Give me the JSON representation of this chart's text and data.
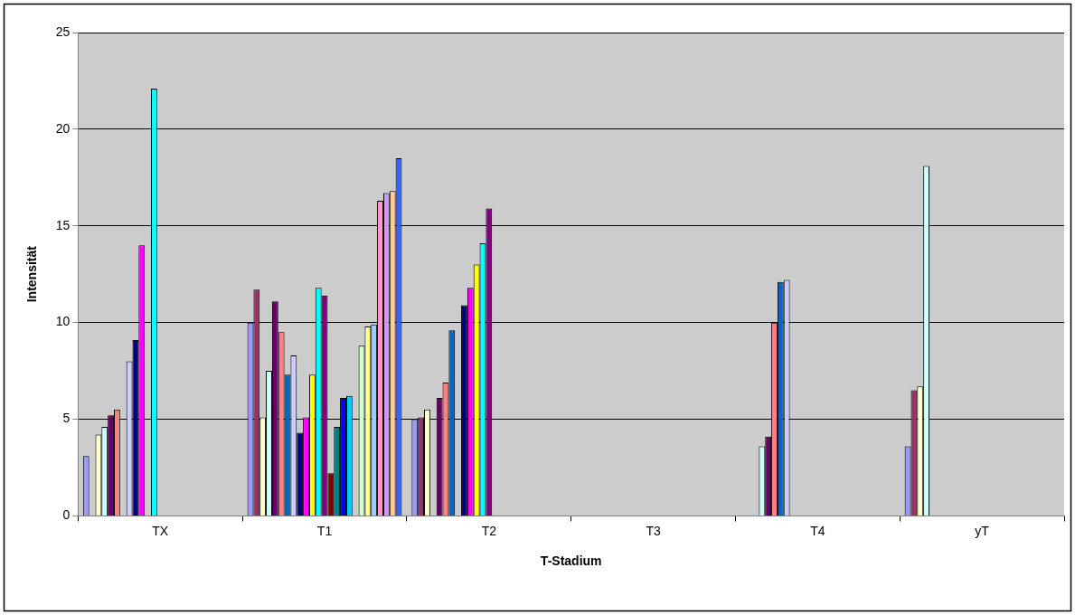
{
  "chart_data": {
    "type": "bar",
    "xlabel": "T-Stadium",
    "ylabel": "Intensität",
    "categories": [
      "TX",
      "T1",
      "T2",
      "T3",
      "T4",
      "yT"
    ],
    "ylim": [
      0,
      25
    ],
    "yticks": [
      0,
      5,
      10,
      15,
      20,
      25
    ],
    "grid": "y",
    "series": [
      {
        "color": "#9999ff",
        "values": [
          3.1,
          10.0,
          5.0,
          null,
          null,
          3.6
        ]
      },
      {
        "color": "#993366",
        "values": [
          null,
          11.7,
          5.1,
          null,
          null,
          6.5
        ]
      },
      {
        "color": "#ffffcc",
        "values": [
          4.2,
          5.1,
          5.5,
          null,
          null,
          6.7
        ]
      },
      {
        "color": "#ccffff",
        "values": [
          4.6,
          7.5,
          null,
          null,
          3.6,
          18.1
        ]
      },
      {
        "color": "#660066",
        "values": [
          5.2,
          11.1,
          6.1,
          null,
          4.1,
          null
        ]
      },
      {
        "color": "#ff8080",
        "values": [
          5.5,
          9.5,
          6.9,
          null,
          10.0,
          null
        ]
      },
      {
        "color": "#0066cc",
        "values": [
          null,
          7.3,
          9.6,
          null,
          12.1,
          null
        ]
      },
      {
        "color": "#ccccff",
        "values": [
          8.0,
          8.3,
          null,
          null,
          12.2,
          null
        ]
      },
      {
        "color": "#000080",
        "values": [
          9.1,
          4.3,
          10.9,
          null,
          null,
          null
        ]
      },
      {
        "color": "#ff00ff",
        "values": [
          14.0,
          5.1,
          11.8,
          null,
          null,
          null
        ]
      },
      {
        "color": "#ffff00",
        "values": [
          null,
          7.3,
          13.0,
          null,
          null,
          null
        ]
      },
      {
        "color": "#00ffff",
        "values": [
          22.1,
          11.8,
          14.1,
          null,
          null,
          null
        ]
      },
      {
        "color": "#800080",
        "values": [
          null,
          11.4,
          15.9,
          null,
          null,
          null
        ]
      },
      {
        "color": "#800000",
        "values": [
          null,
          2.2,
          null,
          null,
          null,
          null
        ]
      },
      {
        "color": "#008080",
        "values": [
          null,
          4.6,
          null,
          null,
          null,
          null
        ]
      },
      {
        "color": "#0000ff",
        "values": [
          null,
          6.1,
          null,
          null,
          null,
          null
        ]
      },
      {
        "color": "#00ccff",
        "values": [
          null,
          6.2,
          null,
          null,
          null,
          null
        ]
      },
      {
        "color": "#ccffff",
        "values": [
          null,
          null,
          null,
          null,
          null,
          null
        ]
      },
      {
        "color": "#ccffcc",
        "values": [
          null,
          8.8,
          null,
          null,
          null,
          null
        ]
      },
      {
        "color": "#ffff99",
        "values": [
          null,
          9.8,
          null,
          null,
          null,
          null
        ]
      },
      {
        "color": "#99ccff",
        "values": [
          null,
          9.9,
          null,
          null,
          null,
          null
        ]
      },
      {
        "color": "#ff99cc",
        "values": [
          null,
          16.3,
          null,
          null,
          null,
          null
        ]
      },
      {
        "color": "#cc99ff",
        "values": [
          null,
          16.7,
          null,
          null,
          null,
          null
        ]
      },
      {
        "color": "#ffcc99",
        "values": [
          null,
          16.8,
          null,
          null,
          null,
          null
        ]
      },
      {
        "color": "#3366ff",
        "values": [
          null,
          18.5,
          null,
          null,
          null,
          null
        ]
      }
    ]
  }
}
